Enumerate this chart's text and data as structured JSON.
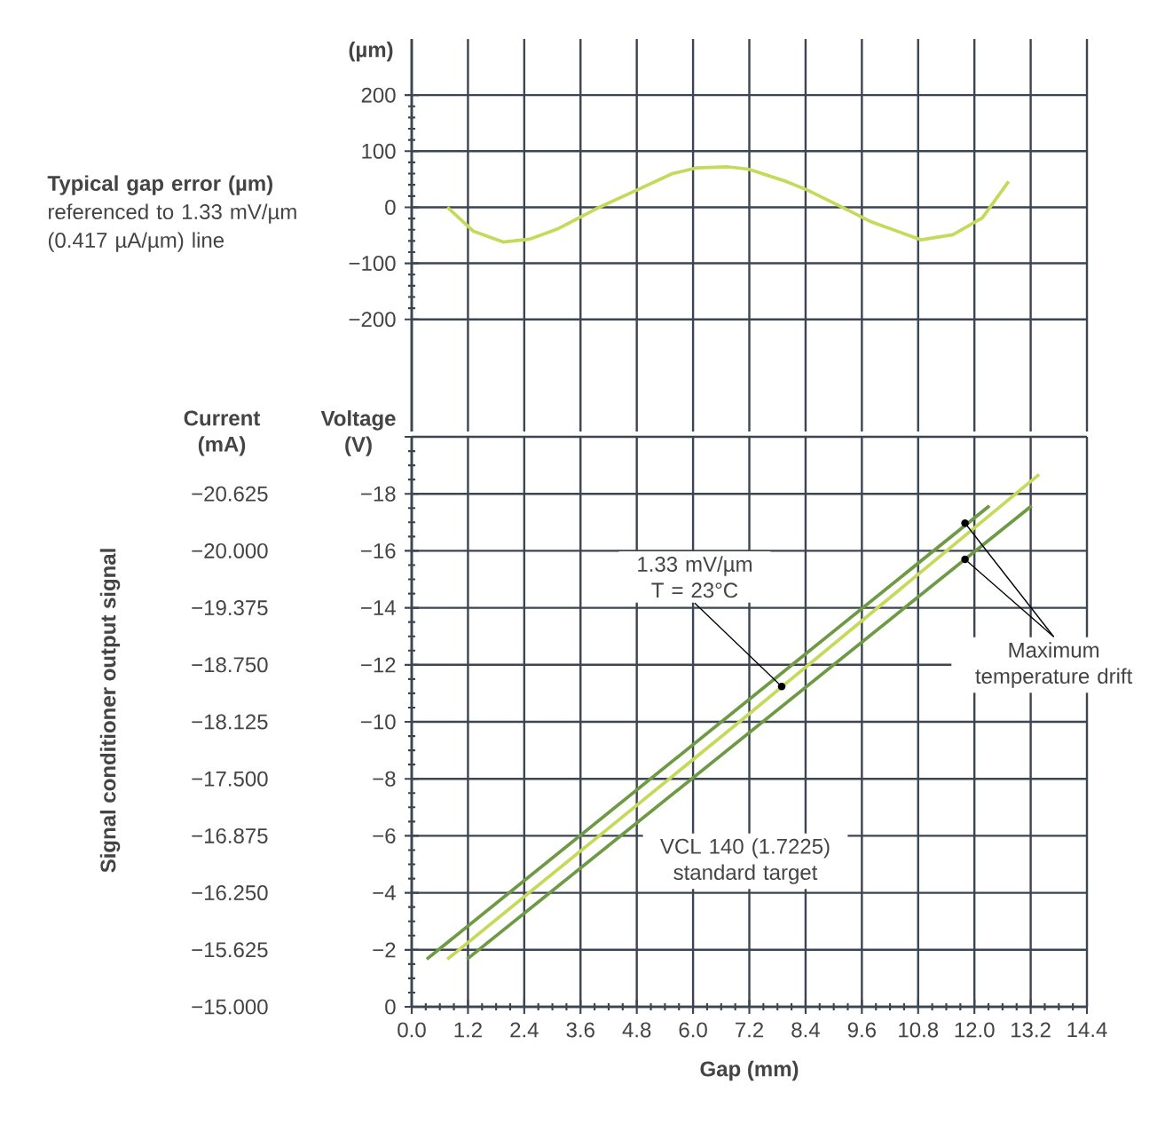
{
  "chart_data": [
    {
      "type": "line",
      "title": "Typical gap error (µm)",
      "subtitle": "referenced to 1.33 mV/µm (0.417 µA/µm) line",
      "ylabel": "(µm)",
      "x": [
        0.76,
        1.32,
        1.95,
        2.51,
        3.13,
        4.0,
        4.81,
        5.56,
        6.06,
        6.75,
        7.18,
        7.99,
        8.43,
        9.18,
        9.8,
        10.86,
        11.54,
        12.17,
        12.73
      ],
      "series": [
        {
          "color": "#c5d95a",
          "values": [
            0,
            -43,
            -62,
            -57,
            -38,
            0,
            31,
            60,
            70,
            72,
            68,
            46,
            31,
            0,
            -26,
            -58,
            -49,
            -19,
            46
          ]
        }
      ],
      "xlim": [
        0,
        14.4
      ],
      "xticks": [
        0,
        1.2,
        2.4,
        3.6,
        4.8,
        6,
        7.2,
        8.4,
        9.6,
        10.8,
        12,
        13.2,
        14.4
      ],
      "ylim": [
        -400,
        300
      ],
      "yticks": [
        200,
        100,
        0,
        {
          "value": -100,
          "label": "−100"
        },
        {
          "value": -200,
          "label": "−200"
        }
      ],
      "grid": true,
      "tick_labels": "y"
    },
    {
      "type": "line",
      "xlabel": "Gap (mm)",
      "ylabel": "Voltage (V)",
      "y2label": "Current (mA)",
      "series": [
        {
          "color": "#6f9a45",
          "x": [
            0.32,
            12.32
          ],
          "values": [
            -1.67,
            -17.58
          ]
        },
        {
          "color": "#c5d95a",
          "x": [
            0.76,
            6.99,
            13.38
          ],
          "values": [
            -1.67,
            -10.0,
            -18.68
          ]
        },
        {
          "color": "#6f9a45",
          "x": [
            1.18,
            13.22
          ],
          "values": [
            -1.67,
            -17.58
          ]
        }
      ],
      "xlim": [
        0,
        14.4
      ],
      "xticks": [
        {
          "value": 0,
          "label": "0.0"
        },
        1.2,
        2.4,
        3.6,
        4.8,
        {
          "value": 6,
          "label": "6.0"
        },
        7.2,
        8.4,
        9.6,
        10.8,
        {
          "value": 12,
          "label": "12.0"
        },
        13.2,
        14.4
      ],
      "ylim": [
        0,
        -20
      ],
      "yticks": [
        0,
        {
          "value": -2,
          "label": "−2"
        },
        {
          "value": -4,
          "label": "−4"
        },
        {
          "value": -6,
          "label": "−6"
        },
        {
          "value": -8,
          "label": "−8"
        },
        {
          "value": -10,
          "label": "−10"
        },
        {
          "value": -12,
          "label": "−12"
        },
        {
          "value": -14,
          "label": "−14"
        },
        {
          "value": -16,
          "label": "−16"
        },
        {
          "value": -18,
          "label": "−18"
        },
        {
          "value": -20,
          "label": null
        }
      ],
      "y2lim": [
        -15,
        -21.25
      ],
      "y2ticks": [
        {
          "value": -15,
          "label": "−15.000"
        },
        {
          "value": -15.625,
          "label": "−15.625"
        },
        {
          "value": -16.25,
          "label": "−16.250"
        },
        {
          "value": -16.875,
          "label": "−16.875"
        },
        {
          "value": -17.5,
          "label": "−17.500"
        },
        {
          "value": -18.125,
          "label": "−18.125"
        },
        {
          "value": -18.75,
          "label": "−18.750"
        },
        {
          "value": -19.375,
          "label": "−19.375"
        },
        {
          "value": -20,
          "label": "−20.000"
        },
        {
          "value": -20.625,
          "label": "−20.625"
        }
      ],
      "grid": true,
      "annotations": [
        {
          "text": "1.33 mV/µm T = 23°C",
          "x": 7.89,
          "y": -11.24
        },
        {
          "text": "Maximum temperature drift",
          "x": 11.8,
          "y": -16.97
        },
        "VCL 140 (1.7225) standard target",
        "Signal conditioner output signal"
      ]
    }
  ]
}
